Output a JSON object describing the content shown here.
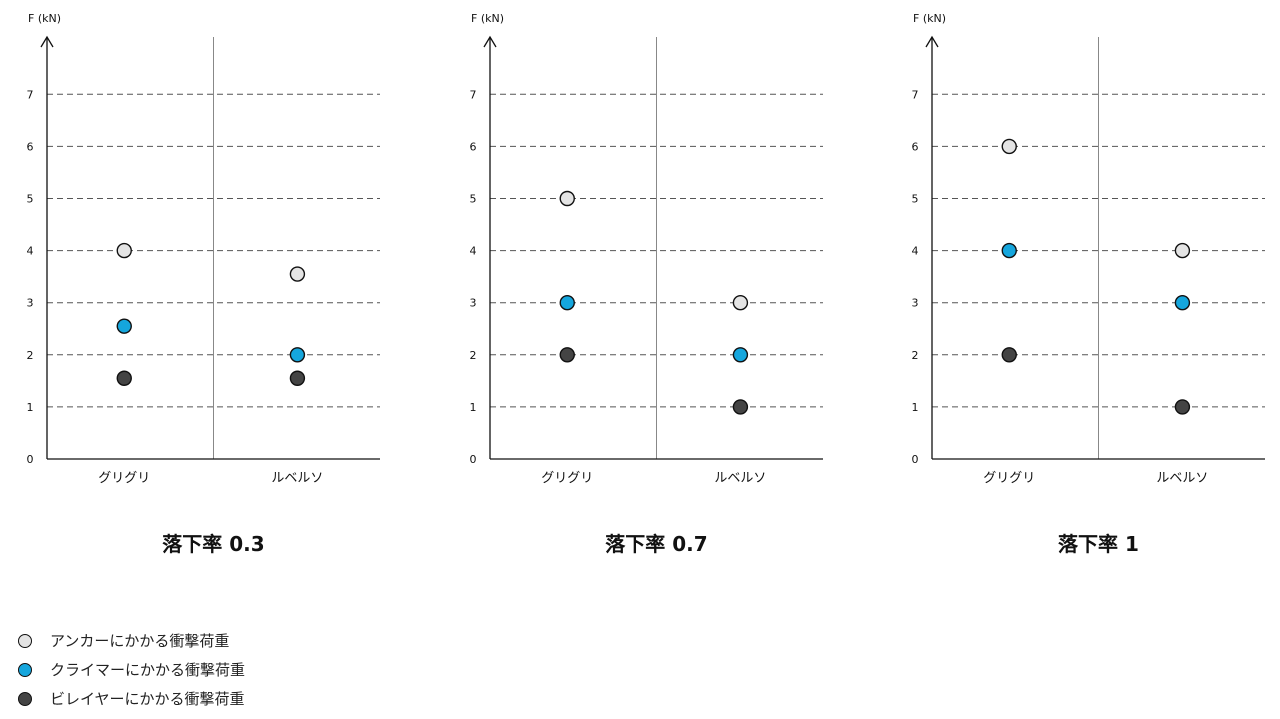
{
  "colors": {
    "anchor": "#e4e4e4",
    "climber": "#15a6dd",
    "belayer": "#444444",
    "gridline": "#555555",
    "axis": "#111111",
    "divider": "#888888"
  },
  "legend": [
    {
      "series": "anchor",
      "label": "アンカーにかかる衝撃荷重"
    },
    {
      "series": "climber",
      "label": "クライマーにかかる衝撃荷重"
    },
    {
      "series": "belayer",
      "label": "ビレイヤーにかかる衝撃荷重"
    }
  ],
  "chart_data": [
    {
      "type": "scatter",
      "title": "落下率 0.3",
      "ylabel": "F (kN)",
      "ylim": [
        0,
        8
      ],
      "yticks": [
        "0",
        "1",
        "2",
        "3",
        "4",
        "5",
        "6",
        "7"
      ],
      "categories": [
        "グリグリ",
        "ルベルソ"
      ],
      "grid": true,
      "series": [
        {
          "name": "アンカーにかかる衝撃荷重",
          "key": "anchor",
          "values": [
            4.0,
            3.55
          ]
        },
        {
          "name": "クライマーにかかる衝撃荷重",
          "key": "climber",
          "values": [
            2.55,
            2.0
          ]
        },
        {
          "name": "ビレイヤーにかかる衝撃荷重",
          "key": "belayer",
          "values": [
            1.55,
            1.55
          ]
        }
      ]
    },
    {
      "type": "scatter",
      "title": "落下率 0.7",
      "ylabel": "F (kN)",
      "ylim": [
        0,
        8
      ],
      "yticks": [
        "0",
        "1",
        "2",
        "3",
        "4",
        "5",
        "6",
        "7"
      ],
      "categories": [
        "グリグリ",
        "ルベルソ"
      ],
      "grid": true,
      "series": [
        {
          "name": "アンカーにかかる衝撃荷重",
          "key": "anchor",
          "values": [
            5.0,
            3.0
          ]
        },
        {
          "name": "クライマーにかかる衝撃荷重",
          "key": "climber",
          "values": [
            3.0,
            2.0
          ]
        },
        {
          "name": "ビレイヤーにかかる衝撃荷重",
          "key": "belayer",
          "values": [
            2.0,
            1.0
          ]
        }
      ]
    },
    {
      "type": "scatter",
      "title": "落下率 1",
      "ylabel": "F (kN)",
      "ylim": [
        0,
        8
      ],
      "yticks": [
        "0",
        "1",
        "2",
        "3",
        "4",
        "5",
        "6",
        "7"
      ],
      "categories": [
        "グリグリ",
        "ルベルソ"
      ],
      "grid": true,
      "series": [
        {
          "name": "アンカーにかかる衝撃荷重",
          "key": "anchor",
          "values": [
            6.0,
            4.0
          ]
        },
        {
          "name": "クライマーにかかる衝撃荷重",
          "key": "climber",
          "values": [
            4.0,
            3.0
          ]
        },
        {
          "name": "ビレイヤーにかかる衝撃荷重",
          "key": "belayer",
          "values": [
            2.0,
            1.0
          ]
        }
      ]
    }
  ]
}
